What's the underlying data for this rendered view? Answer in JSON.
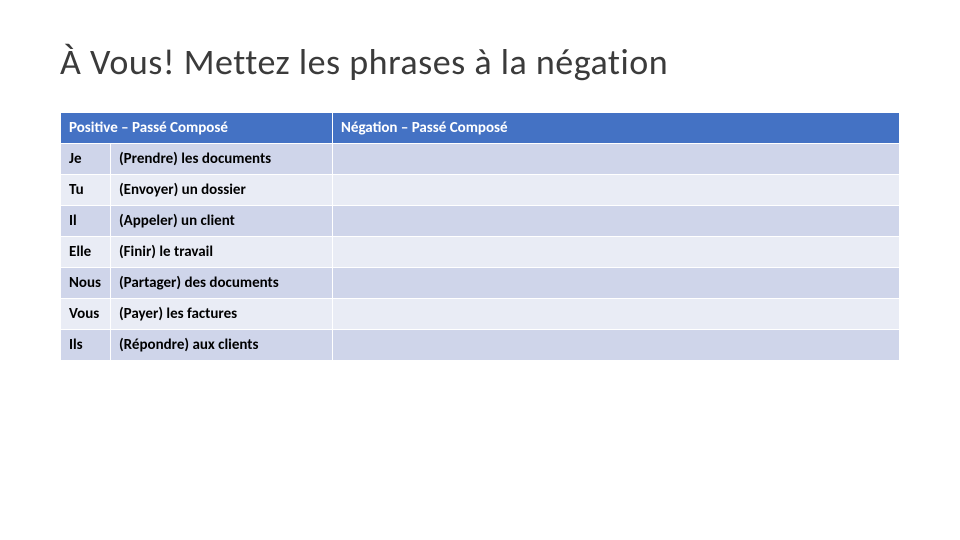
{
  "slide": {
    "title": "À Vous! Mettez les phrases à la négation"
  },
  "table": {
    "header_positive": "Positive – Passé Composé",
    "header_negation": "Négation – Passé Composé",
    "header_bg": "#4472c4",
    "header_fg": "#ffffff",
    "band_a_bg": "#cfd5ea",
    "band_b_bg": "#e9ecf5",
    "cell_fg": "#000000",
    "font_size_pt": 11,
    "rows": [
      {
        "pronoun": "Je",
        "verb": "(Prendre) les documents",
        "negation": ""
      },
      {
        "pronoun": "Tu",
        "verb": "(Envoyer) un dossier",
        "negation": ""
      },
      {
        "pronoun": "Il",
        "verb": "(Appeler) un client",
        "negation": ""
      },
      {
        "pronoun": "Elle",
        "verb": "(Finir) le travail",
        "negation": ""
      },
      {
        "pronoun": "Nous",
        "verb": "(Partager) des documents",
        "negation": ""
      },
      {
        "pronoun": "Vous",
        "verb": "(Payer) les factures",
        "negation": ""
      },
      {
        "pronoun": "Ils",
        "verb": "(Répondre) aux clients",
        "negation": ""
      }
    ]
  }
}
